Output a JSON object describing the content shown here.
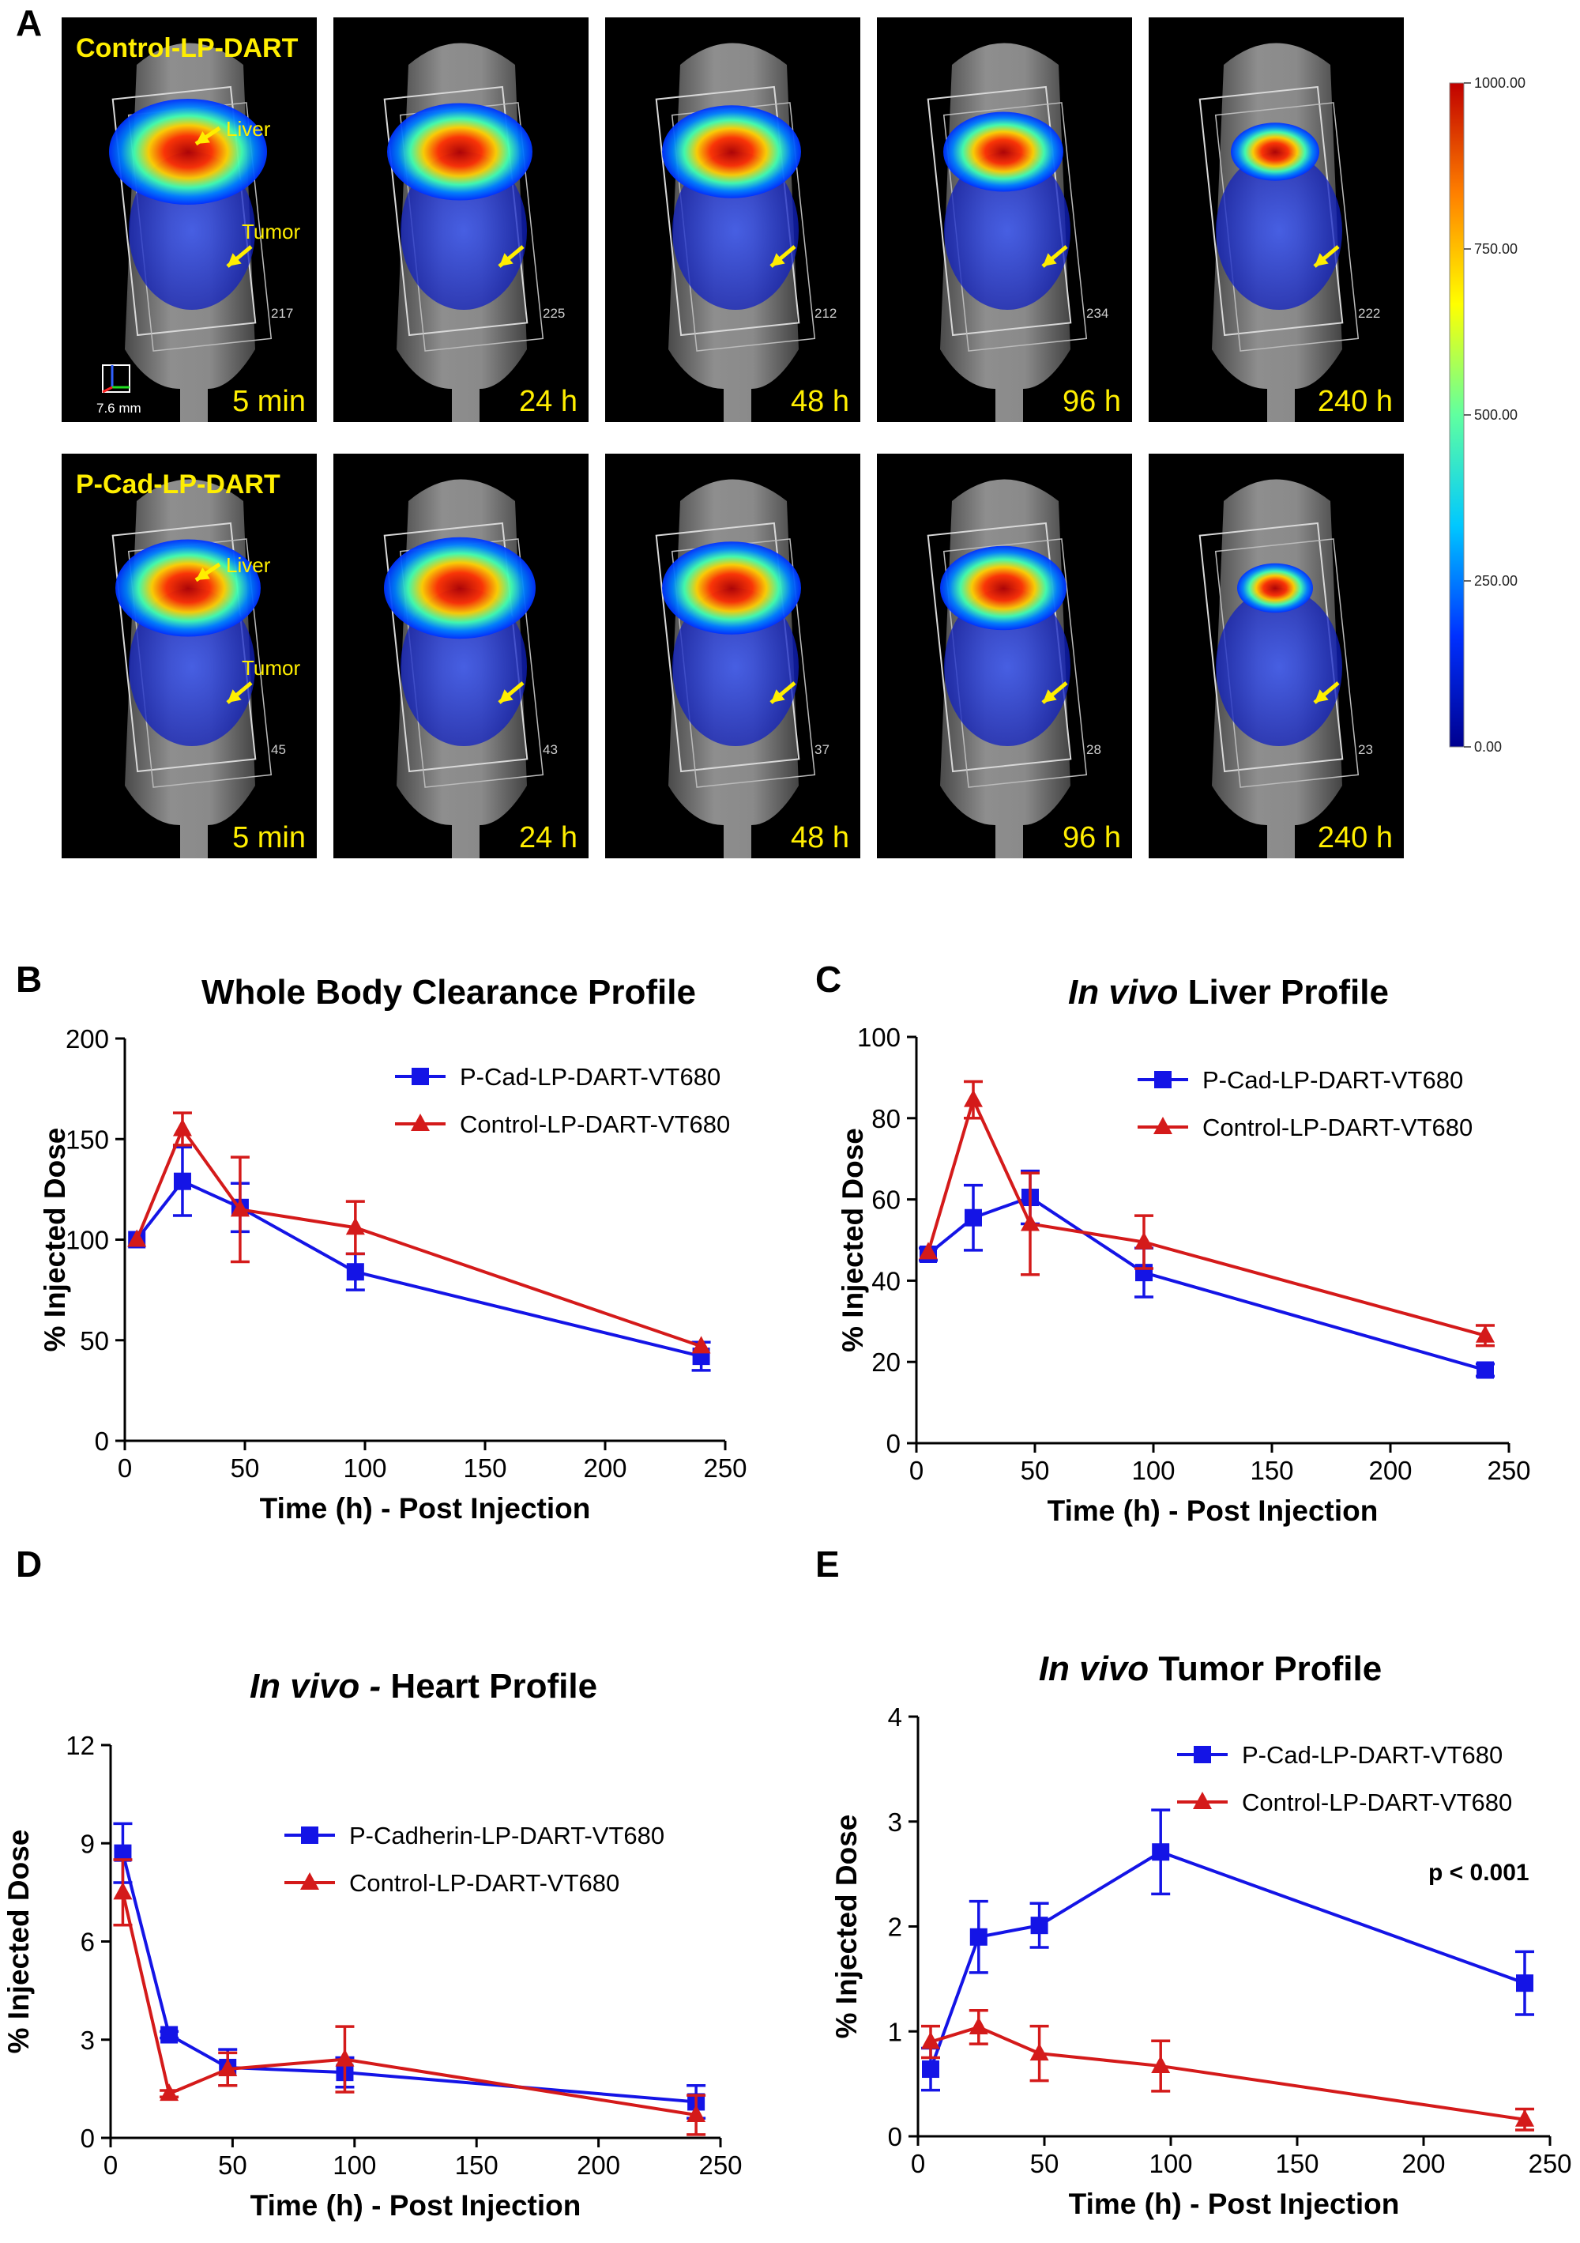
{
  "panels": {
    "A": "A",
    "B": "B",
    "C": "C",
    "D": "D",
    "E": "E"
  },
  "imaging": {
    "rows": [
      {
        "title": "Control-LP-DART",
        "liver_label": "Liver",
        "tumor_label": "Tumor",
        "frames": [
          {
            "time": "5 min",
            "id_num": "217"
          },
          {
            "time": "24 h",
            "id_num": "225"
          },
          {
            "time": "48 h",
            "id_num": "212"
          },
          {
            "time": "96 h",
            "id_num": "234"
          },
          {
            "time": "240 h",
            "id_num": "222"
          }
        ]
      },
      {
        "title": "P-Cad-LP-DART",
        "liver_label": "Liver",
        "tumor_label": "Tumor",
        "frames": [
          {
            "time": "5 min",
            "id_num": "45"
          },
          {
            "time": "24 h",
            "id_num": "43"
          },
          {
            "time": "48 h",
            "id_num": "37"
          },
          {
            "time": "96 h",
            "id_num": "28"
          },
          {
            "time": "240 h",
            "id_num": "23"
          }
        ]
      }
    ],
    "scale_bar": "7.6 mm",
    "colorbar_ticks": [
      "1000.00",
      "750.00",
      "500.00",
      "250.00",
      "0.00"
    ],
    "colors": [
      "#00008f",
      "#0030ff",
      "#00c8ff",
      "#60ffa0",
      "#ffff00",
      "#ff8000",
      "#c00000"
    ]
  },
  "chart_data": [
    {
      "panel": "B",
      "type": "line",
      "title": "Whole Body Clearance Profile",
      "xlabel": "Time (h) - Post Injection",
      "ylabel": "% Injected Dose",
      "xlim": [
        0,
        250
      ],
      "ylim": [
        0,
        200
      ],
      "xticks": [
        0,
        50,
        100,
        150,
        200,
        250
      ],
      "yticks": [
        0,
        50,
        100,
        150,
        200
      ],
      "legend": "top-right",
      "series": [
        {
          "name": "P-Cad-LP-DART-VT680",
          "color": "#1414e6",
          "marker": "square",
          "x": [
            5,
            24,
            48,
            96,
            240
          ],
          "y": [
            100,
            129,
            116,
            84,
            42
          ],
          "err": [
            0,
            17,
            12,
            9,
            7
          ]
        },
        {
          "name": "Control-LP-DART-VT680",
          "color": "#d41a1a",
          "marker": "triangle",
          "x": [
            5,
            24,
            48,
            96,
            240
          ],
          "y": [
            100,
            155,
            115,
            106,
            47
          ],
          "err": [
            0,
            8,
            26,
            13,
            0
          ]
        }
      ]
    },
    {
      "panel": "C",
      "type": "line",
      "title_parts": [
        {
          "text": "In vivo",
          "italic": true
        },
        {
          "text": " Liver Profile",
          "italic": false
        }
      ],
      "xlabel": "Time (h) - Post Injection",
      "ylabel": "% Injected Dose",
      "xlim": [
        0,
        250
      ],
      "ylim": [
        0,
        100
      ],
      "xticks": [
        0,
        50,
        100,
        150,
        200,
        250
      ],
      "yticks": [
        0,
        20,
        40,
        60,
        80,
        100
      ],
      "legend": "top-right",
      "series": [
        {
          "name": "P-Cad-LP-DART-VT680",
          "color": "#1414e6",
          "marker": "square",
          "x": [
            5,
            24,
            48,
            96,
            240
          ],
          "y": [
            46.5,
            55.5,
            60.5,
            42,
            18
          ],
          "err": [
            1.5,
            8,
            6.5,
            6,
            1.5
          ]
        },
        {
          "name": "Control-LP-DART-VT680",
          "color": "#d41a1a",
          "marker": "triangle",
          "x": [
            5,
            24,
            48,
            96,
            240
          ],
          "y": [
            47,
            84.5,
            54,
            49.5,
            26.5
          ],
          "err": [
            0,
            4.5,
            12.5,
            6.5,
            2.5
          ]
        }
      ]
    },
    {
      "panel": "D",
      "type": "line",
      "title_parts": [
        {
          "text": "In vivo -",
          "italic": true
        },
        {
          "text": " Heart Profile",
          "italic": false
        }
      ],
      "xlabel": "Time (h) - Post Injection",
      "ylabel": "% Injected Dose",
      "xlim": [
        0,
        250
      ],
      "ylim": [
        0,
        12
      ],
      "xticks": [
        0,
        50,
        100,
        150,
        200,
        250
      ],
      "yticks": [
        0,
        3,
        6,
        9,
        12
      ],
      "legend": "top-right",
      "series": [
        {
          "name": "P-Cadherin-LP-DART-VT680",
          "color": "#1414e6",
          "marker": "square",
          "x": [
            5,
            24,
            48,
            96,
            240
          ],
          "y": [
            8.7,
            3.15,
            2.15,
            2.0,
            1.1
          ],
          "err": [
            0.9,
            0.1,
            0.55,
            0.45,
            0.5
          ]
        },
        {
          "name": "Control-LP-DART-VT680",
          "color": "#d41a1a",
          "marker": "triangle",
          "x": [
            5,
            24,
            48,
            96,
            240
          ],
          "y": [
            7.5,
            1.35,
            2.1,
            2.4,
            0.7
          ],
          "err": [
            1.0,
            0.1,
            0.5,
            1.0,
            0.6
          ]
        }
      ]
    },
    {
      "panel": "E",
      "type": "line",
      "title_parts": [
        {
          "text": "In vivo",
          "italic": true
        },
        {
          "text": " Tumor Profile",
          "italic": false
        }
      ],
      "xlabel": "Time (h) - Post Injection",
      "ylabel": "% Injected Dose",
      "xlim": [
        0,
        250
      ],
      "ylim": [
        0,
        4
      ],
      "xticks": [
        0,
        50,
        100,
        150,
        200,
        250
      ],
      "yticks": [
        0,
        1,
        2,
        3,
        4
      ],
      "legend": "top-right",
      "annotation": "p < 0.001",
      "series": [
        {
          "name": "P-Cad-LP-DART-VT680",
          "color": "#1414e6",
          "marker": "square",
          "x": [
            5,
            24,
            48,
            96,
            240
          ],
          "y": [
            0.64,
            1.9,
            2.01,
            2.71,
            1.46
          ],
          "err": [
            0.2,
            0.34,
            0.21,
            0.4,
            0.3
          ]
        },
        {
          "name": "Control-LP-DART-VT680",
          "color": "#d41a1a",
          "marker": "triangle",
          "x": [
            5,
            24,
            48,
            96,
            240
          ],
          "y": [
            0.9,
            1.04,
            0.79,
            0.67,
            0.16
          ],
          "err": [
            0.15,
            0.16,
            0.26,
            0.24,
            0.1
          ]
        }
      ]
    }
  ]
}
